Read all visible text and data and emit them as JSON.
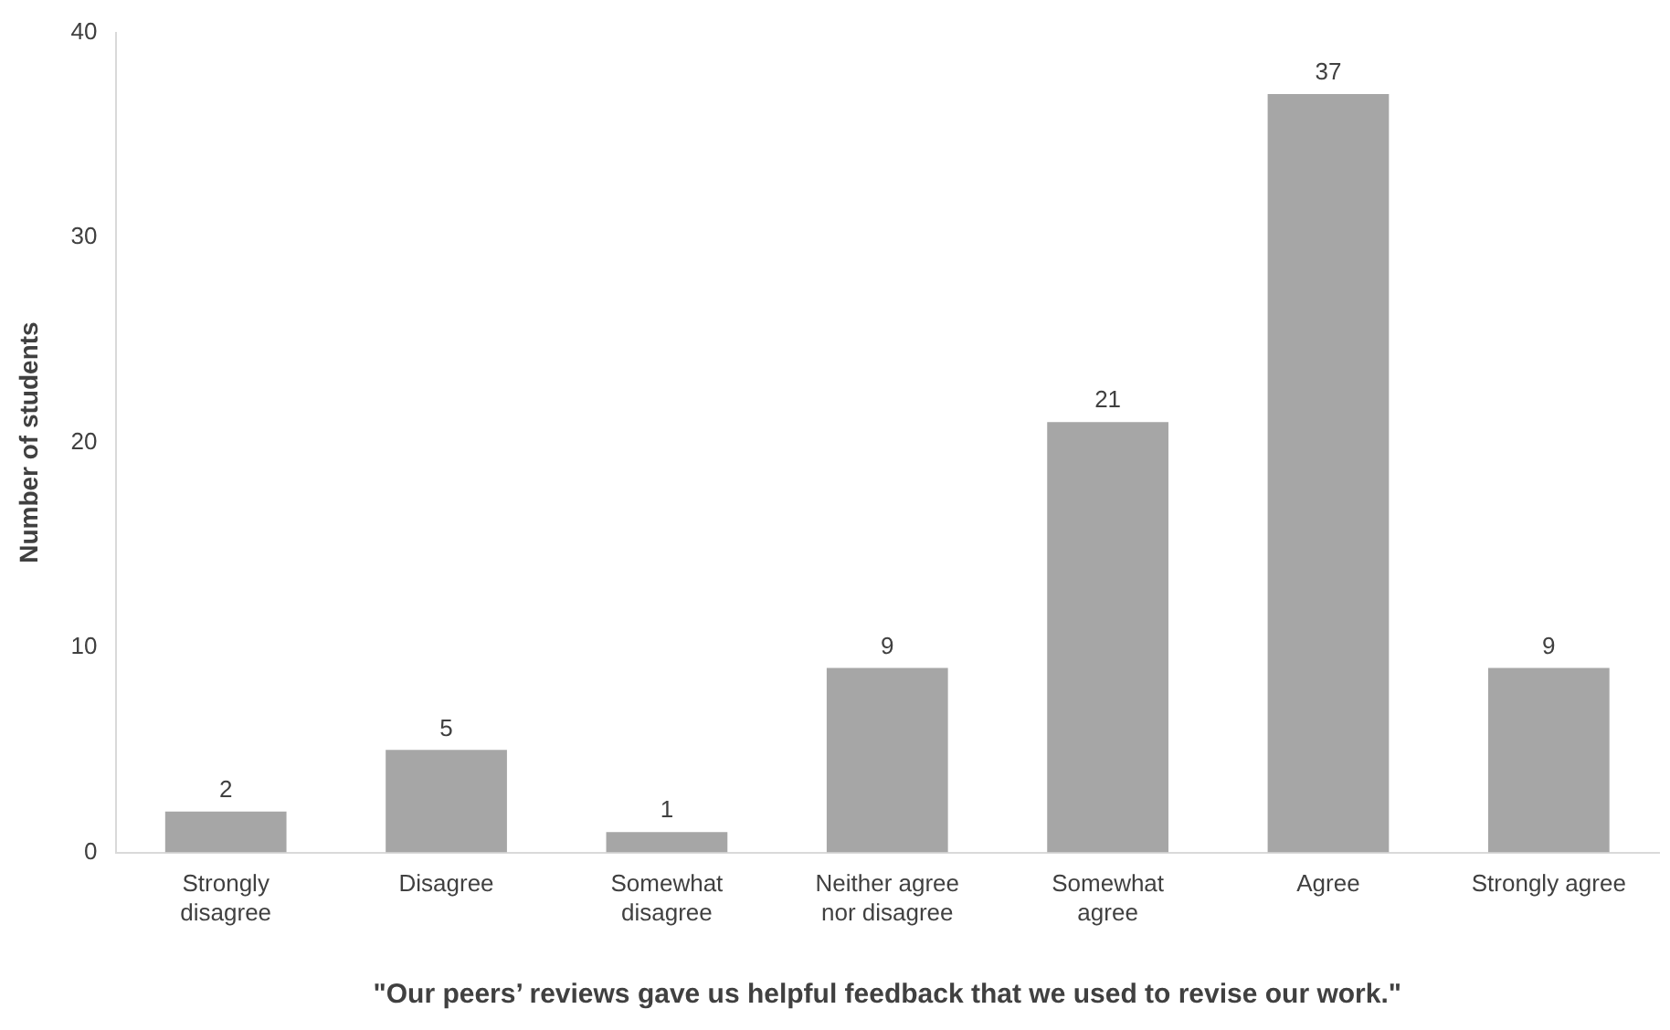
{
  "chart_data": {
    "type": "bar",
    "xlabel": "\"Our peers’ reviews gave us helpful feedback that we used to revise our work.\"",
    "ylabel": "Number of students",
    "categories": [
      "Strongly disagree",
      "Disagree",
      "Somewhat disagree",
      "Neither agree nor disagree",
      "Somewhat agree",
      "Agree",
      "Strongly agree"
    ],
    "values": [
      2,
      5,
      1,
      9,
      21,
      37,
      9
    ],
    "color": "#a6a6a6",
    "ylim": [
      0,
      40
    ],
    "yticks": [
      0,
      10,
      20,
      30,
      40
    ],
    "grid": false,
    "legend": false,
    "data_labels": true
  }
}
